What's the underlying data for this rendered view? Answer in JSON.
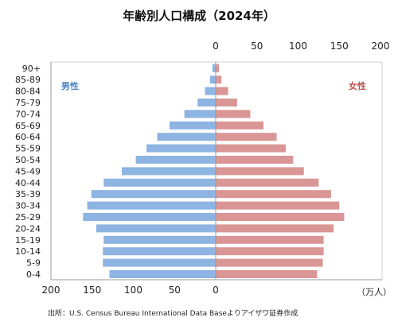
{
  "chart_data": {
    "type": "bar",
    "orientation": "horizontal",
    "title": "年齢別人口構成（2024年）",
    "categories": [
      "0-4",
      "5-9",
      "10-14",
      "15-19",
      "20-24",
      "25-29",
      "30-34",
      "35-39",
      "40-44",
      "45-49",
      "50-54",
      "55-59",
      "60-64",
      "65-69",
      "70-74",
      "75-79",
      "80-84",
      "85-89",
      "90+"
    ],
    "series": [
      {
        "name": "男性",
        "color": "#8db4e2",
        "side": "left",
        "values": [
          129,
          137,
          137,
          136,
          145,
          161,
          156,
          151,
          136,
          114,
          97,
          84,
          71,
          56,
          38,
          22,
          13,
          7,
          4
        ]
      },
      {
        "name": "女性",
        "color": "#da9694",
        "side": "right",
        "values": [
          123,
          130,
          131,
          131,
          143,
          156,
          150,
          140,
          125,
          107,
          94,
          85,
          74,
          58,
          42,
          26,
          15,
          7,
          4
        ]
      }
    ],
    "xlim": [
      0,
      200
    ],
    "x_ticks": [
      200,
      150,
      100,
      50,
      0
    ],
    "x2_ticks": [
      0,
      50,
      100,
      150,
      200
    ],
    "unit": "（万人）",
    "legend_placement": "inside-top",
    "grid": false
  },
  "source": "出所：U.S. Census Bureau International Data Baseよりアイザワ証券作成"
}
